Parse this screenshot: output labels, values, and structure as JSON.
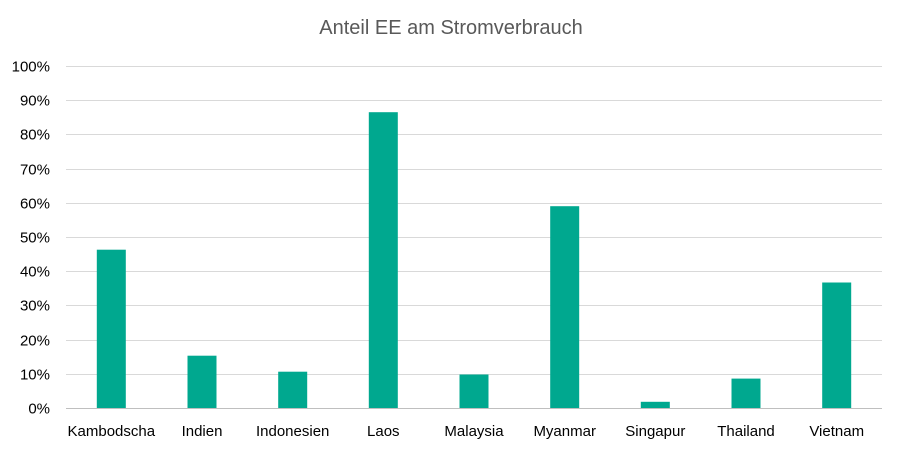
{
  "chart_data": {
    "type": "bar",
    "title": "Anteil EE am Stromverbrauch",
    "xlabel": "",
    "ylabel": "",
    "categories": [
      "Kambodscha",
      "Indien",
      "Indonesien",
      "Laos",
      "Malaysia",
      "Myanmar",
      "Singapur",
      "Thailand",
      "Vietnam"
    ],
    "values": [
      46.3,
      15.3,
      10.6,
      86.5,
      9.8,
      59.0,
      1.8,
      8.6,
      36.7
    ],
    "ylim": [
      0,
      100
    ],
    "yticks": [
      "0%",
      "10%",
      "20%",
      "30%",
      "40%",
      "50%",
      "60%",
      "70%",
      "80%",
      "90%",
      "100%"
    ],
    "grid": true,
    "legend": "none",
    "bar_color": "#00a88f"
  }
}
